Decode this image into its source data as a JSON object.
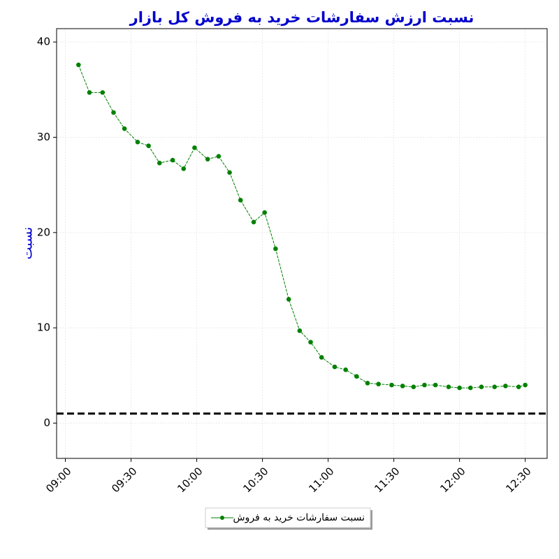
{
  "chart_data": {
    "type": "line",
    "title": "نسبت ارزش سفارشات خرید به فروش کل بازار",
    "y_label": "نسبت",
    "x": [
      "09:06",
      "09:11",
      "09:17",
      "09:22",
      "09:27",
      "09:33",
      "09:38",
      "09:43",
      "09:49",
      "09:54",
      "09:59",
      "10:05",
      "10:10",
      "10:15",
      "10:20",
      "10:26",
      "10:31",
      "10:36",
      "10:42",
      "10:47",
      "10:52",
      "10:57",
      "11:03",
      "11:08",
      "11:13",
      "11:18",
      "11:23",
      "11:29",
      "11:34",
      "11:39",
      "11:44",
      "11:49",
      "11:55",
      "12:00",
      "12:05",
      "12:10",
      "12:16",
      "12:21",
      "12:27",
      "12:30"
    ],
    "series": [
      {
        "name": "نسبت سفارشات خرید به فروش",
        "color": "#008000",
        "values": [
          37.6,
          34.7,
          34.7,
          32.6,
          30.9,
          29.5,
          29.1,
          27.3,
          27.6,
          26.7,
          28.9,
          27.7,
          28.0,
          26.3,
          23.4,
          21.1,
          22.1,
          18.3,
          13.0,
          9.7,
          8.5,
          6.9,
          5.9,
          5.6,
          4.9,
          4.2,
          4.1,
          4.0,
          3.9,
          3.8,
          4.0,
          4.0,
          3.8,
          3.7,
          3.7,
          3.8,
          3.8,
          3.9,
          3.8,
          4.0
        ]
      }
    ],
    "xlim": [
      "08:56",
      "12:40"
    ],
    "xticks": [
      "09:00",
      "09:30",
      "10:00",
      "10:30",
      "11:00",
      "11:30",
      "12:00",
      "12:30"
    ],
    "ylim": [
      -3.7,
      41.4
    ],
    "yticks": [
      0,
      10,
      20,
      30,
      40
    ],
    "reference_line": {
      "value": 1,
      "color": "#000000"
    },
    "grid": true,
    "legend": "bottom"
  }
}
